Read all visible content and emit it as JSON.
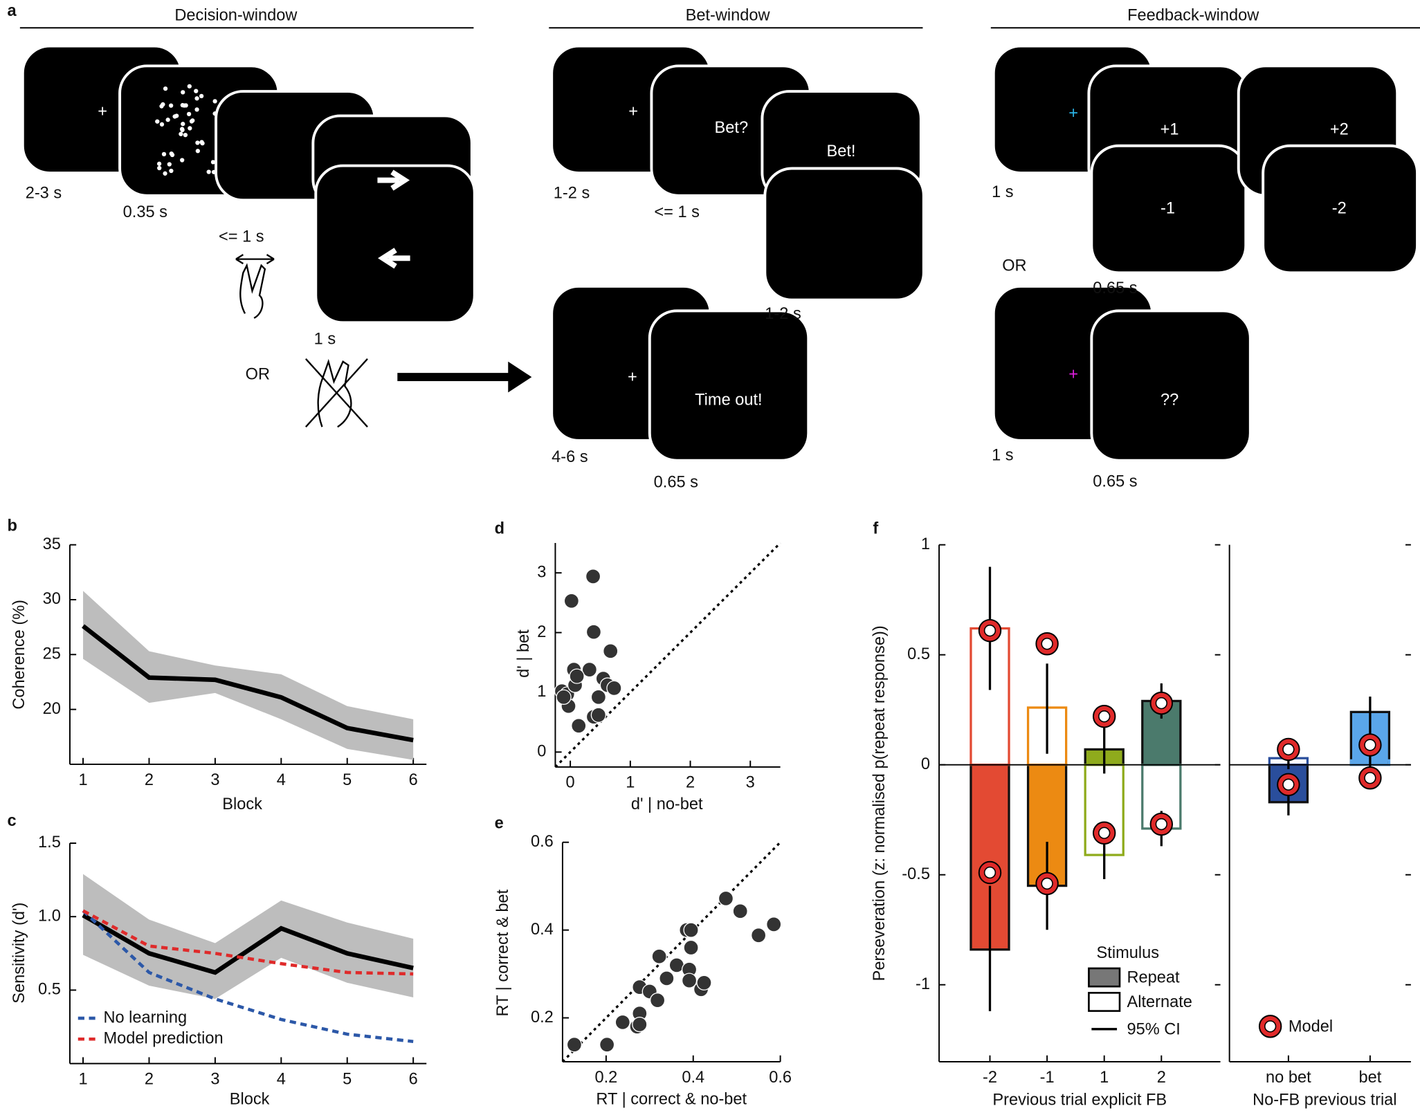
{
  "panel_a": {
    "label": "a",
    "headers": [
      "Decision-window",
      "Bet-window",
      "Feedback-window"
    ],
    "screen_texts": [
      {
        "text": "+",
        "color": "#ffffff"
      },
      {
        "text": "+",
        "color": "#ffffff"
      },
      {
        "text": "Bet?",
        "color": "#ffffff"
      },
      {
        "text": "Bet!",
        "color": "#ffffff"
      },
      {
        "text": "+",
        "color": "#ffffff"
      },
      {
        "text": "Time out!",
        "color": "#ffffff"
      },
      {
        "text": "+",
        "color": "#2bb5e8"
      },
      {
        "text": "+1",
        "color": "#ffffff"
      },
      {
        "text": "-1",
        "color": "#ffffff"
      },
      {
        "text": "+2",
        "color": "#ffffff"
      },
      {
        "text": "-2",
        "color": "#ffffff"
      },
      {
        "text": "+",
        "color": "#e01fe0"
      },
      {
        "text": "??",
        "color": "#ffffff"
      }
    ],
    "timings": [
      "2-3 s",
      "0.35 s",
      "<= 1 s",
      "1 s",
      "OR",
      "1-2 s",
      "<= 1 s",
      "1-2 s",
      "4-6 s",
      "0.65 s",
      "1 s",
      "OR",
      "0.65 s",
      "1 s",
      "0.65 s"
    ]
  },
  "chart_data": [
    {
      "type": "line",
      "label": "b",
      "xlabel": "Block",
      "ylabel": "Coherence (%)",
      "x": [
        1,
        2,
        3,
        4,
        5,
        6
      ],
      "xlim": [
        0.8,
        6.2
      ],
      "xticks": [
        1,
        2,
        3,
        4,
        5,
        6
      ],
      "ylim": [
        15,
        35
      ],
      "yticks": [
        20,
        25,
        30,
        35
      ],
      "series": [
        {
          "color": "#000000",
          "band_color": "#bdbdbd",
          "values": [
            27.6,
            22.9,
            22.7,
            21.1,
            18.3,
            17.2
          ],
          "ci_low": [
            24.6,
            20.6,
            21.5,
            19.1,
            16.4,
            15.4
          ],
          "ci_high": [
            30.8,
            25.3,
            24.0,
            23.2,
            20.3,
            19.1
          ]
        }
      ]
    },
    {
      "type": "line",
      "label": "c",
      "xlabel": "Block",
      "ylabel": "Sensitivity (d')",
      "x": [
        1,
        2,
        3,
        4,
        5,
        6
      ],
      "xlim": [
        0.8,
        6.2
      ],
      "xticks": [
        1,
        2,
        3,
        4,
        5,
        6
      ],
      "ylim": [
        0,
        1.5
      ],
      "yticks": [
        0.5,
        {
          "value": 1,
          "label": "1.0"
        },
        1.5
      ],
      "series": [
        {
          "color": "#000000",
          "band_color": "#bdbdbd",
          "values": [
            1.01,
            0.75,
            0.62,
            0.92,
            0.75,
            0.65
          ],
          "ci_low": [
            0.74,
            0.53,
            0.44,
            0.72,
            0.55,
            0.45
          ],
          "ci_high": [
            1.29,
            0.98,
            0.82,
            1.11,
            0.96,
            0.85
          ]
        },
        {
          "name": "No learning",
          "color": "#2c58a8",
          "dashed": true,
          "values": [
            1.04,
            0.62,
            0.44,
            0.3,
            0.2,
            0.15
          ]
        },
        {
          "name": "Model prediction",
          "color": "#df2a2a",
          "dashed": true,
          "values": [
            1.04,
            0.8,
            0.75,
            0.68,
            0.62,
            0.61
          ]
        }
      ]
    },
    {
      "type": "scatter",
      "label": "d",
      "xlabel": "d' | no-bet",
      "ylabel": "d' | bet",
      "color": "#333333",
      "diagonal": true,
      "xlim": [
        -0.25,
        3.5
      ],
      "ylim": [
        -0.25,
        3.5
      ],
      "xticks": [
        0,
        1,
        2,
        3
      ],
      "yticks": [
        0,
        1,
        2,
        3
      ],
      "x": [
        0.02,
        0.38,
        0.39,
        0.67,
        0.06,
        0.32,
        0.55,
        0.62,
        0.73,
        -0.14,
        -0.05,
        0.08,
        0.11,
        -0.03,
        0.47,
        0.14,
        0.39,
        0.47,
        -0.11
      ],
      "values": [
        2.53,
        2.94,
        2.01,
        1.69,
        1.38,
        1.38,
        1.23,
        1.12,
        1.07,
        1.02,
        0.97,
        1.12,
        1.27,
        0.77,
        0.92,
        0.44,
        0.59,
        0.62,
        0.92
      ]
    },
    {
      "type": "scatter",
      "label": "e",
      "xlabel": "RT | correct & no-bet",
      "ylabel": "RT | correct & bet",
      "color": "#333333",
      "diagonal": true,
      "xlim": [
        0.1,
        0.6
      ],
      "ylim": [
        0.1,
        0.6
      ],
      "xticks": [
        0.2,
        0.4,
        0.6
      ],
      "yticks": [
        0.2,
        0.4,
        0.6
      ],
      "x": [
        0.127,
        0.202,
        0.238,
        0.271,
        0.277,
        0.277,
        0.3,
        0.318,
        0.322,
        0.339,
        0.362,
        0.391,
        0.391,
        0.395,
        0.418,
        0.425,
        0.385,
        0.395,
        0.475,
        0.508,
        0.55,
        0.585,
        0.277
      ],
      "values": [
        0.139,
        0.139,
        0.19,
        0.18,
        0.21,
        0.27,
        0.26,
        0.24,
        0.34,
        0.29,
        0.32,
        0.31,
        0.285,
        0.36,
        0.265,
        0.28,
        0.4,
        0.4,
        0.472,
        0.443,
        0.388,
        0.413,
        0.185
      ]
    },
    {
      "type": "bar",
      "label": "f",
      "ylabel": "Perseveration (z: normalised p(repeat response))",
      "ylim": [
        -1.35,
        1
      ],
      "yticks": [
        -1,
        -0.5,
        0,
        0.5,
        1
      ],
      "legend_title": "Stimulus",
      "ci_label": "95% CI",
      "model_label": "Model",
      "groups": [
        {
          "xlabel": "Previous trial explicit FB",
          "categories": [
            "-2",
            "-1",
            "1",
            "2"
          ],
          "colors": [
            "#e34a33",
            "#ec8a12",
            "#8fab1c",
            "#4b7a6c"
          ],
          "series": [
            {
              "name": "Repeat",
              "values": [
                -0.84,
                -0.55,
                0.07,
                0.29
              ],
              "ci_low": [
                -1.12,
                -0.75,
                -0.04,
                0.21
              ],
              "ci_high": [
                -0.55,
                -0.35,
                0.18,
                0.37
              ],
              "model": [
                -0.49,
                -0.54,
                0.22,
                0.28
              ]
            },
            {
              "name": "Alternate",
              "values": [
                0.62,
                0.26,
                -0.41,
                -0.29
              ],
              "ci_low": [
                0.34,
                0.05,
                -0.52,
                -0.37
              ],
              "ci_high": [
                0.9,
                0.46,
                -0.3,
                -0.21
              ],
              "model": [
                0.61,
                0.55,
                -0.31,
                -0.27
              ]
            }
          ]
        },
        {
          "xlabel": "No-FB previous trial",
          "categories": [
            "no bet",
            "bet"
          ],
          "colors": [
            "#2a4e9c",
            "#5aa6ea"
          ],
          "series": [
            {
              "name": "Repeat",
              "values": [
                -0.17,
                0.24
              ],
              "ci_low": [
                -0.23,
                0.13
              ],
              "ci_high": [
                -0.1,
                0.31
              ],
              "model": [
                -0.09,
                0.09
              ]
            },
            {
              "name": "Alternate",
              "values": [
                0.03,
                0.02
              ],
              "ci_low": [
                -0.02,
                -0.05
              ],
              "ci_high": [
                0.08,
                0.08
              ],
              "model": [
                0.07,
                -0.06
              ]
            }
          ]
        }
      ]
    }
  ]
}
